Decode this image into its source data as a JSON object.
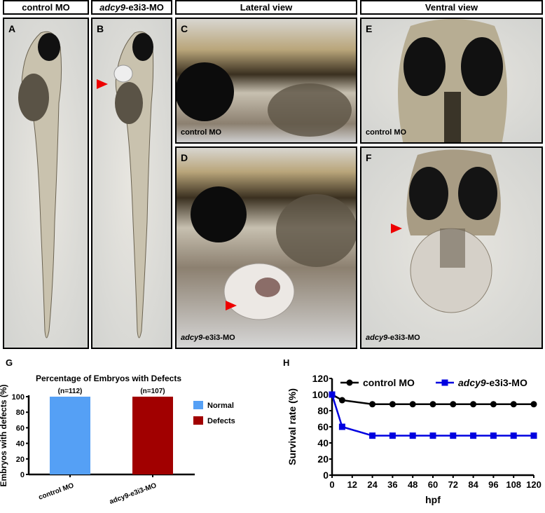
{
  "headers": {
    "control": "control MO",
    "morphant_italic": "adcy9",
    "morphant_rest": "-e3i3-MO",
    "lateral": "Lateral view",
    "ventral": "Ventral view"
  },
  "panels": {
    "A": {
      "label": "A"
    },
    "B": {
      "label": "B"
    },
    "C": {
      "label": "C",
      "caption": "control MO"
    },
    "D": {
      "label": "D",
      "caption_italic": "adcy9",
      "caption_rest": "-e3i3-MO"
    },
    "E": {
      "label": "E",
      "caption": "control MO"
    },
    "F": {
      "label": "F",
      "caption_italic": "adcy9",
      "caption_rest": "-e3i3-MO"
    }
  },
  "chart_data": [
    {
      "panel": "G",
      "type": "bar",
      "title": "Percentage of Embryos with Defects",
      "ylabel": "Embryos with defects (%)",
      "xlabel": "",
      "ylim": [
        0,
        100
      ],
      "yticks": [
        0,
        20,
        40,
        60,
        80,
        100
      ],
      "categories": [
        "control MO",
        "adcy9-e3i3-MO"
      ],
      "values": [
        100,
        100
      ],
      "annotations": [
        "(n=112)",
        "(n=107)"
      ],
      "series_labels": [
        "Normal",
        "Defects"
      ],
      "colors": [
        "#55a0f5",
        "#a10000"
      ],
      "legend": "top-right"
    },
    {
      "panel": "H",
      "type": "line",
      "title": "",
      "ylabel": "Survival rate (%)",
      "xlabel": "hpf",
      "ylim": [
        0,
        120
      ],
      "xlim": [
        0,
        120
      ],
      "yticks": [
        0,
        20,
        40,
        60,
        80,
        100,
        120
      ],
      "xticks": [
        0,
        12,
        24,
        36,
        48,
        60,
        72,
        84,
        96,
        108,
        120
      ],
      "x": [
        0,
        6,
        24,
        36,
        48,
        60,
        72,
        84,
        96,
        108,
        120
      ],
      "series": [
        {
          "name": "control MO",
          "name_italic": "",
          "name_rest": "control MO",
          "color": "#000000",
          "marker": "circle",
          "values": [
            100,
            93,
            88,
            88,
            88,
            88,
            88,
            88,
            88,
            88,
            88
          ]
        },
        {
          "name": "adcy9-e3i3-MO",
          "name_italic": "adcy9",
          "name_rest": "-e3i3-MO",
          "color": "#0000e0",
          "marker": "square",
          "values": [
            100,
            60,
            49,
            49,
            49,
            49,
            49,
            49,
            49,
            49,
            49
          ]
        }
      ],
      "legend": "top"
    }
  ]
}
